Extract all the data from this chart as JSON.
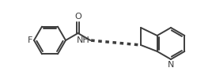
{
  "background_color": "#ffffff",
  "line_color": "#3d3d3d",
  "line_width": 1.4,
  "font_size": 7.5,
  "F_label": "F",
  "O_label": "O",
  "NH_label": "NH",
  "N_label": "N"
}
